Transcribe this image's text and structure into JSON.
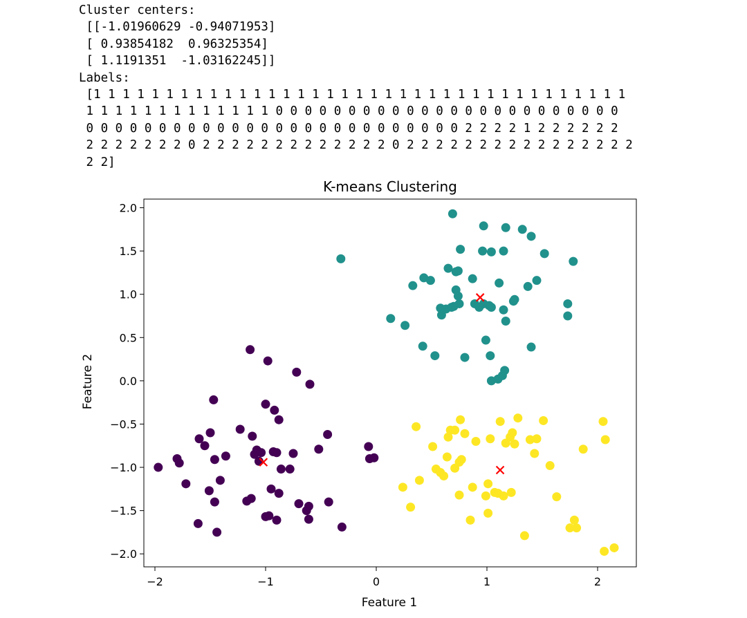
{
  "output": {
    "lines": [
      "Cluster centers:",
      " [[-1.01960629 -0.94071953]",
      " [ 0.93854182  0.96325354]",
      " [ 1.1191351  -1.03162245]]",
      "Labels:",
      " [1 1 1 1 1 1 1 1 1 1 1 1 1 1 1 1 1 1 1 1 1 1 1 1 1 1 1 1 1 1 1 1 1 1 1 1 1",
      " 1 1 1 1 1 1 1 1 1 1 1 1 1 0 0 0 0 0 0 0 0 0 0 0 0 0 0 0 0 0 0 0 0 0 0 0 0",
      " 0 0 0 0 0 0 0 0 0 0 0 0 0 0 0 0 0 0 0 0 0 0 0 0 0 0 2 2 2 2 1 2 2 2 2 2 2",
      " 2 2 2 2 2 2 2 0 2 2 2 2 2 2 2 2 2 2 2 2 2 0 2 2 2 2 2 2 2 2 2 2 2 2 2 2 2 2",
      " 2 2]"
    ]
  },
  "chart_data": {
    "type": "scatter",
    "title": "K-means Clustering",
    "xlabel": "Feature 1",
    "ylabel": "Feature 2",
    "xlim": [
      -2.1,
      2.35
    ],
    "ylim": [
      -2.15,
      2.1
    ],
    "xticks": [
      -2,
      -1,
      0,
      1,
      2
    ],
    "xtick_labels": [
      "−2",
      "−1",
      "0",
      "1",
      "2"
    ],
    "yticks": [
      2.0,
      1.5,
      1.0,
      0.5,
      0.0,
      -0.5,
      -1.0,
      -1.5,
      -2.0
    ],
    "ytick_labels": [
      "2.0",
      "1.5",
      "1.0",
      "0.5",
      "0.0",
      "−0.5",
      "−1.0",
      "−1.5",
      "−2.0"
    ],
    "grid": false,
    "colors": {
      "cluster_0": "#440154",
      "cluster_1": "#21918c",
      "cluster_2": "#fde725",
      "centers": "#ff0000"
    },
    "series": [
      {
        "cluster": 0,
        "points": [
          [
            -1.97,
            -1.0
          ],
          [
            -1.8,
            -0.9
          ],
          [
            -1.78,
            -0.95
          ],
          [
            -1.72,
            -1.19
          ],
          [
            -1.61,
            -1.65
          ],
          [
            -1.6,
            -0.67
          ],
          [
            -1.55,
            -0.75
          ],
          [
            -1.51,
            -1.27
          ],
          [
            -1.5,
            -0.6
          ],
          [
            -1.47,
            -0.22
          ],
          [
            -1.46,
            -0.91
          ],
          [
            -1.46,
            -1.4
          ],
          [
            -1.44,
            -1.75
          ],
          [
            -1.41,
            -1.15
          ],
          [
            -1.36,
            -0.87
          ],
          [
            -1.23,
            -0.56
          ],
          [
            -1.17,
            -1.39
          ],
          [
            -1.14,
            0.36
          ],
          [
            -1.13,
            -1.36
          ],
          [
            -1.12,
            -0.64
          ],
          [
            -1.1,
            -0.85
          ],
          [
            -1.08,
            -0.8
          ],
          [
            -1.06,
            -0.93
          ],
          [
            -1.04,
            -0.83
          ],
          [
            -1.0,
            -0.27
          ],
          [
            -1.0,
            -1.57
          ],
          [
            -0.98,
            0.23
          ],
          [
            -0.97,
            -1.56
          ],
          [
            -0.95,
            -1.25
          ],
          [
            -0.93,
            -0.82
          ],
          [
            -0.92,
            -0.34
          ],
          [
            -0.9,
            -1.61
          ],
          [
            -0.9,
            -0.83
          ],
          [
            -0.88,
            -0.45
          ],
          [
            -0.88,
            -1.3
          ],
          [
            -0.86,
            -1.02
          ],
          [
            -0.78,
            -1.02
          ],
          [
            -0.75,
            -0.84
          ],
          [
            -0.72,
            0.1
          ],
          [
            -0.7,
            -1.42
          ],
          [
            -0.63,
            -1.5
          ],
          [
            -0.61,
            -1.6
          ],
          [
            -0.61,
            -1.45
          ],
          [
            -0.6,
            -0.04
          ],
          [
            -0.52,
            -0.79
          ],
          [
            -0.44,
            -0.62
          ],
          [
            -0.43,
            -1.4
          ],
          [
            -0.31,
            -1.69
          ],
          [
            -0.07,
            -0.76
          ],
          [
            -0.06,
            -0.9
          ],
          [
            -0.02,
            -0.89
          ]
        ]
      },
      {
        "cluster": 1,
        "points": [
          [
            -0.32,
            1.41
          ],
          [
            0.13,
            0.72
          ],
          [
            0.26,
            0.64
          ],
          [
            0.33,
            1.1
          ],
          [
            0.42,
            0.4
          ],
          [
            0.43,
            1.19
          ],
          [
            0.49,
            1.16
          ],
          [
            0.53,
            0.29
          ],
          [
            0.58,
            0.84
          ],
          [
            0.59,
            0.76
          ],
          [
            0.63,
            0.83
          ],
          [
            0.65,
            1.3
          ],
          [
            0.68,
            0.85
          ],
          [
            0.69,
            1.93
          ],
          [
            0.7,
            0.86
          ],
          [
            0.72,
            1.26
          ],
          [
            0.72,
            1.05
          ],
          [
            0.74,
            1.27
          ],
          [
            0.74,
            0.98
          ],
          [
            0.75,
            0.89
          ],
          [
            0.76,
            1.52
          ],
          [
            0.8,
            0.27
          ],
          [
            0.87,
            1.18
          ],
          [
            0.89,
            0.89
          ],
          [
            0.93,
            0.85
          ],
          [
            0.96,
            1.5
          ],
          [
            0.97,
            1.79
          ],
          [
            0.97,
            0.89
          ],
          [
            0.99,
            0.47
          ],
          [
            1.02,
            0.87
          ],
          [
            1.03,
            0.29
          ],
          [
            1.04,
            1.49
          ],
          [
            1.04,
            0.85
          ],
          [
            1.04,
            0.0
          ],
          [
            1.1,
            0.02
          ],
          [
            1.11,
            1.13
          ],
          [
            1.14,
            0.06
          ],
          [
            1.15,
            0.82
          ],
          [
            1.15,
            1.5
          ],
          [
            1.16,
            0.12
          ],
          [
            1.17,
            0.69
          ],
          [
            1.17,
            1.77
          ],
          [
            1.24,
            0.92
          ],
          [
            1.25,
            0.94
          ],
          [
            1.32,
            1.75
          ],
          [
            1.37,
            1.09
          ],
          [
            1.4,
            1.67
          ],
          [
            1.4,
            0.39
          ],
          [
            1.45,
            1.16
          ],
          [
            1.52,
            1.47
          ],
          [
            1.73,
            0.89
          ],
          [
            1.73,
            0.75
          ],
          [
            1.78,
            1.38
          ]
        ]
      },
      {
        "cluster": 2,
        "points": [
          [
            0.24,
            -1.23
          ],
          [
            0.31,
            -1.46
          ],
          [
            0.36,
            -0.53
          ],
          [
            0.39,
            -1.15
          ],
          [
            0.51,
            -0.76
          ],
          [
            0.54,
            -1.02
          ],
          [
            0.58,
            -1.06
          ],
          [
            0.61,
            -1.1
          ],
          [
            0.64,
            -0.88
          ],
          [
            0.65,
            -0.65
          ],
          [
            0.67,
            -0.57
          ],
          [
            0.71,
            -0.57
          ],
          [
            0.71,
            -1.01
          ],
          [
            0.75,
            -0.94
          ],
          [
            0.75,
            -1.32
          ],
          [
            0.76,
            -0.45
          ],
          [
            0.77,
            -0.91
          ],
          [
            0.8,
            -0.61
          ],
          [
            0.85,
            -1.61
          ],
          [
            0.87,
            -1.23
          ],
          [
            0.9,
            -0.7
          ],
          [
            0.99,
            -1.33
          ],
          [
            1.01,
            -1.19
          ],
          [
            1.01,
            -1.53
          ],
          [
            1.03,
            -0.67
          ],
          [
            1.07,
            -1.29
          ],
          [
            1.1,
            -1.3
          ],
          [
            1.12,
            -0.47
          ],
          [
            1.15,
            -1.33
          ],
          [
            1.17,
            -0.72
          ],
          [
            1.21,
            -0.65
          ],
          [
            1.22,
            -1.29
          ],
          [
            1.23,
            -0.6
          ],
          [
            1.25,
            -0.73
          ],
          [
            1.28,
            -0.43
          ],
          [
            1.34,
            -1.79
          ],
          [
            1.39,
            -0.68
          ],
          [
            1.45,
            -0.67
          ],
          [
            1.43,
            -0.84
          ],
          [
            1.51,
            -0.46
          ],
          [
            1.57,
            -0.98
          ],
          [
            1.63,
            -1.34
          ],
          [
            1.75,
            -1.7
          ],
          [
            1.79,
            -1.61
          ],
          [
            1.81,
            -1.7
          ],
          [
            1.87,
            -0.79
          ],
          [
            2.05,
            -0.47
          ],
          [
            2.06,
            -1.97
          ],
          [
            2.07,
            -0.68
          ],
          [
            2.15,
            -1.93
          ]
        ]
      }
    ],
    "centers": [
      [
        -1.01960629,
        -0.94071953
      ],
      [
        0.93854182,
        0.96325354
      ],
      [
        1.1191351,
        -1.03162245
      ]
    ]
  }
}
